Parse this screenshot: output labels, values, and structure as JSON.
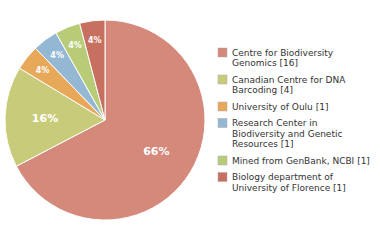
{
  "chart_data": {
    "type": "pie",
    "categories": [
      "Centre for Biodiversity\nGenomics [16]",
      "Canadian Centre for DNA\nBarcoding [4]",
      "University of Oulu [1]",
      "Research Center in\nBiodiversity and Genetic\nResources [1]",
      "Mined from GenBank, NCBI [1]",
      "Biology department of\nUniversity of Florence [1]"
    ],
    "values": [
      66,
      16,
      4,
      4,
      4,
      4
    ],
    "value_labels": [
      "66%",
      "16%",
      "4%",
      "4%",
      "4%",
      "4%"
    ],
    "colors": [
      "#d4897a",
      "#c8cc7a",
      "#e8a85a",
      "#94b8d4",
      "#b8cc78",
      "#c87060"
    ],
    "data_labels": true,
    "legend": "right"
  }
}
